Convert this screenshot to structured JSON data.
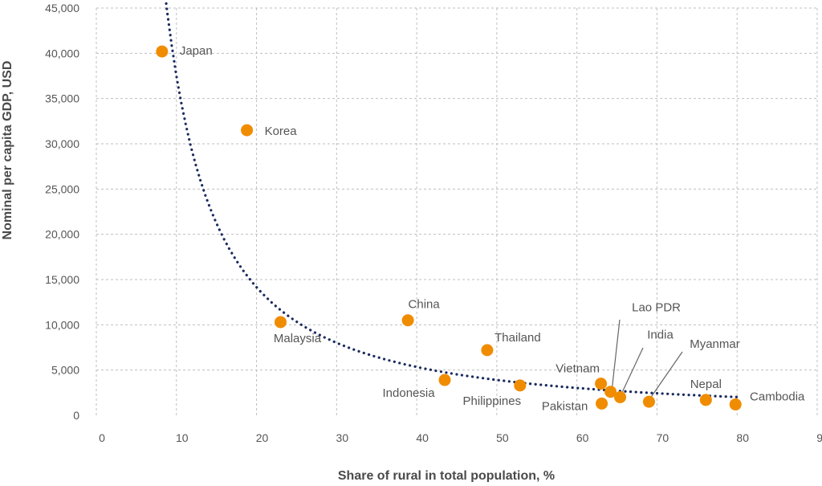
{
  "chart_data": {
    "type": "scatter",
    "title": "",
    "xlabel": "Share of rural in total population, %",
    "ylabel": "Nominal per capita GDP, USD",
    "xlim": [
      0,
      90
    ],
    "ylim": [
      0,
      45000
    ],
    "x_ticks": [
      "0",
      "10",
      "20",
      "30",
      "40",
      "50",
      "60",
      "70",
      "80",
      "90"
    ],
    "y_ticks": [
      "0",
      "5,000",
      "10,000",
      "15,000",
      "20,000",
      "25,000",
      "30,000",
      "35,000",
      "40,000",
      "45,000"
    ],
    "grid": true,
    "point_color": "#f08c00",
    "trend_color": "#1b2a5e",
    "trendline": {
      "type": "power",
      "style": "dotted",
      "x_from": 8.2,
      "x_to": 80,
      "samples": [
        {
          "x": 8.2,
          "y": 35700
        },
        {
          "x": 10,
          "y": 31000
        },
        {
          "x": 20,
          "y": 18500
        },
        {
          "x": 30,
          "y": 12000
        },
        {
          "x": 40,
          "y": 7900
        },
        {
          "x": 50,
          "y": 5100
        },
        {
          "x": 60,
          "y": 3150
        },
        {
          "x": 70,
          "y": 1900
        },
        {
          "x": 80,
          "y": 1100
        }
      ]
    },
    "points": [
      {
        "name": "Japan",
        "x": 8.2,
        "y": 40200
      },
      {
        "name": "Korea",
        "x": 18.8,
        "y": 31500
      },
      {
        "name": "Malaysia",
        "x": 23.0,
        "y": 10300
      },
      {
        "name": "China",
        "x": 38.9,
        "y": 10500
      },
      {
        "name": "Indonesia",
        "x": 43.5,
        "y": 3900
      },
      {
        "name": "Thailand",
        "x": 48.8,
        "y": 7200
      },
      {
        "name": "Philippines",
        "x": 52.9,
        "y": 3300
      },
      {
        "name": "Vietnam",
        "x": 63.0,
        "y": 3500
      },
      {
        "name": "Pakistan",
        "x": 63.1,
        "y": 1300
      },
      {
        "name": "Lao PDR",
        "x": 64.2,
        "y": 2600
      },
      {
        "name": "India",
        "x": 65.4,
        "y": 2000
      },
      {
        "name": "Myanmar",
        "x": 69.0,
        "y": 1500
      },
      {
        "name": "Nepal",
        "x": 76.1,
        "y": 1700
      },
      {
        "name": "Cambodia",
        "x": 79.8,
        "y": 1200
      }
    ]
  }
}
